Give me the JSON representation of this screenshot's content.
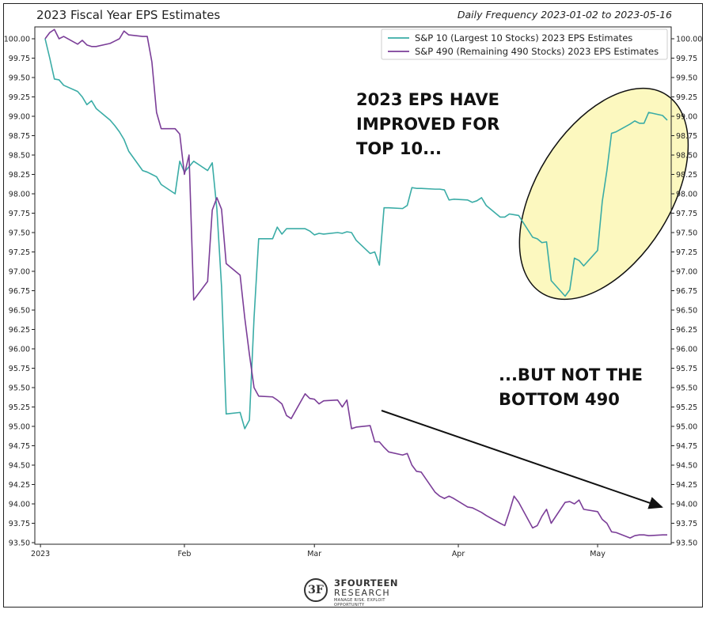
{
  "chart_data": {
    "type": "line",
    "title": "2023 Fiscal Year EPS Estimates",
    "subtitle": "Daily Frequency 2023-01-02 to 2023-05-16",
    "xlabel": "",
    "ylabel": "",
    "x_range": [
      "2023-01-02",
      "2023-05-16"
    ],
    "ylim": [
      93.5,
      100.0
    ],
    "y_ticks": [
      "100.00",
      "99.75",
      "99.50",
      "99.25",
      "99.00",
      "98.75",
      "98.50",
      "98.25",
      "98.00",
      "97.75",
      "97.50",
      "97.25",
      "97.00",
      "96.75",
      "96.50",
      "96.25",
      "96.00",
      "95.75",
      "95.50",
      "95.25",
      "95.00",
      "94.75",
      "94.50",
      "94.25",
      "94.00",
      "93.75",
      "93.50"
    ],
    "x_ticks": [
      {
        "label": "2023",
        "date": "2023-01-01"
      },
      {
        "label": "Feb",
        "date": "2023-02-01"
      },
      {
        "label": "Mar",
        "date": "2023-03-01"
      },
      {
        "label": "Apr",
        "date": "2023-04-01"
      },
      {
        "label": "May",
        "date": "2023-05-01"
      }
    ],
    "grid": false,
    "legend_position": "top-right",
    "series": [
      {
        "name": "S&P 10 (Largest 10 Stocks) 2023 EPS Estimates",
        "color": "#3aaca6",
        "points": [
          [
            "2023-01-02",
            100.0
          ],
          [
            "2023-01-03",
            99.75
          ],
          [
            "2023-01-04",
            99.48
          ],
          [
            "2023-01-05",
            99.47
          ],
          [
            "2023-01-06",
            99.4
          ],
          [
            "2023-01-09",
            99.32
          ],
          [
            "2023-01-10",
            99.25
          ],
          [
            "2023-01-11",
            99.15
          ],
          [
            "2023-01-12",
            99.2
          ],
          [
            "2023-01-13",
            99.1
          ],
          [
            "2023-01-16",
            98.95
          ],
          [
            "2023-01-17",
            98.88
          ],
          [
            "2023-01-18",
            98.8
          ],
          [
            "2023-01-19",
            98.7
          ],
          [
            "2023-01-20",
            98.55
          ],
          [
            "2023-01-23",
            98.3
          ],
          [
            "2023-01-24",
            98.28
          ],
          [
            "2023-01-25",
            98.25
          ],
          [
            "2023-01-26",
            98.22
          ],
          [
            "2023-01-27",
            98.12
          ],
          [
            "2023-01-30",
            98.0
          ],
          [
            "2023-01-31",
            98.42
          ],
          [
            "2023-02-01",
            98.28
          ],
          [
            "2023-02-02",
            98.35
          ],
          [
            "2023-02-03",
            98.42
          ],
          [
            "2023-02-06",
            98.3
          ],
          [
            "2023-02-07",
            98.4
          ],
          [
            "2023-02-08",
            97.8
          ],
          [
            "2023-02-09",
            96.8
          ],
          [
            "2023-02-10",
            95.16
          ],
          [
            "2023-02-13",
            95.18
          ],
          [
            "2023-02-14",
            94.97
          ],
          [
            "2023-02-15",
            95.08
          ],
          [
            "2023-02-16",
            96.4
          ],
          [
            "2023-02-17",
            97.42
          ],
          [
            "2023-02-20",
            97.42
          ],
          [
            "2023-02-21",
            97.57
          ],
          [
            "2023-02-22",
            97.48
          ],
          [
            "2023-02-23",
            97.55
          ],
          [
            "2023-02-24",
            97.55
          ],
          [
            "2023-02-27",
            97.55
          ],
          [
            "2023-02-28",
            97.52
          ],
          [
            "2023-03-01",
            97.47
          ],
          [
            "2023-03-02",
            97.49
          ],
          [
            "2023-03-03",
            97.48
          ],
          [
            "2023-03-06",
            97.5
          ],
          [
            "2023-03-07",
            97.49
          ],
          [
            "2023-03-08",
            97.51
          ],
          [
            "2023-03-09",
            97.5
          ],
          [
            "2023-03-10",
            97.4
          ],
          [
            "2023-03-13",
            97.23
          ],
          [
            "2023-03-14",
            97.25
          ],
          [
            "2023-03-15",
            97.08
          ],
          [
            "2023-03-16",
            97.82
          ],
          [
            "2023-03-17",
            97.82
          ],
          [
            "2023-03-20",
            97.81
          ],
          [
            "2023-03-21",
            97.85
          ],
          [
            "2023-03-22",
            98.08
          ],
          [
            "2023-03-23",
            98.07
          ],
          [
            "2023-03-24",
            98.07
          ],
          [
            "2023-03-27",
            98.06
          ],
          [
            "2023-03-28",
            98.06
          ],
          [
            "2023-03-29",
            98.05
          ],
          [
            "2023-03-30",
            97.92
          ],
          [
            "2023-03-31",
            97.93
          ],
          [
            "2023-04-03",
            97.92
          ],
          [
            "2023-04-04",
            97.89
          ],
          [
            "2023-04-05",
            97.91
          ],
          [
            "2023-04-06",
            97.95
          ],
          [
            "2023-04-07",
            97.85
          ],
          [
            "2023-04-10",
            97.7
          ],
          [
            "2023-04-11",
            97.7
          ],
          [
            "2023-04-12",
            97.74
          ],
          [
            "2023-04-13",
            97.73
          ],
          [
            "2023-04-14",
            97.72
          ],
          [
            "2023-04-17",
            97.44
          ],
          [
            "2023-04-18",
            97.42
          ],
          [
            "2023-04-19",
            97.37
          ],
          [
            "2023-04-20",
            97.38
          ],
          [
            "2023-04-21",
            96.88
          ],
          [
            "2023-04-24",
            96.68
          ],
          [
            "2023-04-25",
            96.76
          ],
          [
            "2023-04-26",
            97.17
          ],
          [
            "2023-04-27",
            97.14
          ],
          [
            "2023-04-28",
            97.07
          ],
          [
            "2023-05-01",
            97.27
          ],
          [
            "2023-05-02",
            97.9
          ],
          [
            "2023-05-03",
            98.3
          ],
          [
            "2023-05-04",
            98.78
          ],
          [
            "2023-05-05",
            98.8
          ],
          [
            "2023-05-08",
            98.9
          ],
          [
            "2023-05-09",
            98.94
          ],
          [
            "2023-05-10",
            98.91
          ],
          [
            "2023-05-11",
            98.91
          ],
          [
            "2023-05-12",
            99.05
          ],
          [
            "2023-05-15",
            99.01
          ],
          [
            "2023-05-16",
            98.95
          ]
        ]
      },
      {
        "name": "S&P 490 (Remaining 490 Stocks) 2023 EPS Estimates",
        "color": "#7b3e98",
        "points": [
          [
            "2023-01-02",
            100.0
          ],
          [
            "2023-01-03",
            100.08
          ],
          [
            "2023-01-04",
            100.12
          ],
          [
            "2023-01-05",
            100.0
          ],
          [
            "2023-01-06",
            100.03
          ],
          [
            "2023-01-09",
            99.93
          ],
          [
            "2023-01-10",
            99.98
          ],
          [
            "2023-01-11",
            99.92
          ],
          [
            "2023-01-12",
            99.9
          ],
          [
            "2023-01-13",
            99.9
          ],
          [
            "2023-01-16",
            99.94
          ],
          [
            "2023-01-17",
            99.97
          ],
          [
            "2023-01-18",
            100.0
          ],
          [
            "2023-01-19",
            100.1
          ],
          [
            "2023-01-20",
            100.05
          ],
          [
            "2023-01-23",
            100.03
          ],
          [
            "2023-01-24",
            100.03
          ],
          [
            "2023-01-25",
            99.7
          ],
          [
            "2023-01-26",
            99.05
          ],
          [
            "2023-01-27",
            98.84
          ],
          [
            "2023-01-30",
            98.84
          ],
          [
            "2023-01-31",
            98.77
          ],
          [
            "2023-02-01",
            98.25
          ],
          [
            "2023-02-02",
            98.5
          ],
          [
            "2023-02-03",
            96.63
          ],
          [
            "2023-02-06",
            96.87
          ],
          [
            "2023-02-07",
            97.79
          ],
          [
            "2023-02-08",
            97.95
          ],
          [
            "2023-02-09",
            97.8
          ],
          [
            "2023-02-10",
            97.1
          ],
          [
            "2023-02-13",
            96.95
          ],
          [
            "2023-02-14",
            96.4
          ],
          [
            "2023-02-15",
            95.93
          ],
          [
            "2023-02-16",
            95.5
          ],
          [
            "2023-02-17",
            95.39
          ],
          [
            "2023-02-20",
            95.38
          ],
          [
            "2023-02-21",
            95.34
          ],
          [
            "2023-02-22",
            95.29
          ],
          [
            "2023-02-23",
            95.14
          ],
          [
            "2023-02-24",
            95.1
          ],
          [
            "2023-02-27",
            95.42
          ],
          [
            "2023-02-28",
            95.36
          ],
          [
            "2023-03-01",
            95.35
          ],
          [
            "2023-03-02",
            95.29
          ],
          [
            "2023-03-03",
            95.33
          ],
          [
            "2023-03-06",
            95.34
          ],
          [
            "2023-03-07",
            95.25
          ],
          [
            "2023-03-08",
            95.34
          ],
          [
            "2023-03-09",
            94.97
          ],
          [
            "2023-03-10",
            94.99
          ],
          [
            "2023-03-13",
            95.01
          ],
          [
            "2023-03-14",
            94.8
          ],
          [
            "2023-03-15",
            94.8
          ],
          [
            "2023-03-16",
            94.73
          ],
          [
            "2023-03-17",
            94.67
          ],
          [
            "2023-03-20",
            94.63
          ],
          [
            "2023-03-21",
            94.65
          ],
          [
            "2023-03-22",
            94.5
          ],
          [
            "2023-03-23",
            94.42
          ],
          [
            "2023-03-24",
            94.41
          ],
          [
            "2023-03-27",
            94.15
          ],
          [
            "2023-03-28",
            94.1
          ],
          [
            "2023-03-29",
            94.07
          ],
          [
            "2023-03-30",
            94.1
          ],
          [
            "2023-03-31",
            94.07
          ],
          [
            "2023-04-03",
            93.96
          ],
          [
            "2023-04-04",
            93.95
          ],
          [
            "2023-04-05",
            93.92
          ],
          [
            "2023-04-06",
            93.89
          ],
          [
            "2023-04-07",
            93.85
          ],
          [
            "2023-04-10",
            93.75
          ],
          [
            "2023-04-11",
            93.72
          ],
          [
            "2023-04-12",
            93.9
          ],
          [
            "2023-04-13",
            94.1
          ],
          [
            "2023-04-14",
            94.02
          ],
          [
            "2023-04-17",
            93.69
          ],
          [
            "2023-04-18",
            93.72
          ],
          [
            "2023-04-19",
            93.84
          ],
          [
            "2023-04-20",
            93.93
          ],
          [
            "2023-04-21",
            93.75
          ],
          [
            "2023-04-24",
            94.02
          ],
          [
            "2023-04-25",
            94.03
          ],
          [
            "2023-04-26",
            94.0
          ],
          [
            "2023-04-27",
            94.05
          ],
          [
            "2023-04-28",
            93.93
          ],
          [
            "2023-05-01",
            93.9
          ],
          [
            "2023-05-02",
            93.8
          ],
          [
            "2023-05-03",
            93.75
          ],
          [
            "2023-05-04",
            93.64
          ],
          [
            "2023-05-05",
            93.63
          ],
          [
            "2023-05-08",
            93.56
          ],
          [
            "2023-05-09",
            93.59
          ],
          [
            "2023-05-10",
            93.6
          ],
          [
            "2023-05-11",
            93.6
          ],
          [
            "2023-05-12",
            93.59
          ],
          [
            "2023-05-15",
            93.6
          ],
          [
            "2023-05-16",
            93.6
          ]
        ]
      }
    ],
    "annotations": [
      {
        "id": "top10",
        "lines": [
          "2023 EPS HAVE",
          "IMPROVED FOR",
          "TOP 10..."
        ]
      },
      {
        "id": "bottom490",
        "lines": [
          "...BUT NOT THE",
          "BOTTOM 490"
        ]
      }
    ],
    "highlight_color": "#fcf8bf",
    "arrow_color": "#111111"
  },
  "brand": {
    "name": "3FOURTEEN",
    "sub": "RESEARCH",
    "tagline": "MANAGE RISK. EXPLOIT OPPORTUNITY",
    "monogram": "3F"
  }
}
